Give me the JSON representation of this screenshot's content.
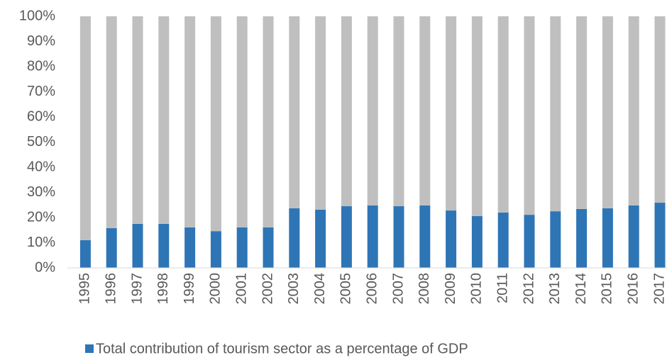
{
  "chart_data": {
    "type": "stacked_bar",
    "categories": [
      "1995",
      "1996",
      "1997",
      "1998",
      "1999",
      "2000",
      "2001",
      "2002",
      "2003",
      "2004",
      "2005",
      "2006",
      "2007",
      "2008",
      "2009",
      "2010",
      "2011",
      "2012",
      "2013",
      "2014",
      "2015",
      "2016",
      "2017"
    ],
    "series": [
      {
        "name": "Total contribution of tourism sector as a percentage of GDP",
        "color": "#2e75b6",
        "values": [
          11.0,
          15.8,
          17.5,
          17.5,
          16.1,
          14.6,
          16.1,
          16.1,
          23.7,
          23.1,
          24.5,
          24.8,
          24.5,
          24.8,
          22.8,
          20.6,
          22.0,
          21.1,
          22.5,
          23.4,
          23.7,
          24.8,
          25.9
        ]
      },
      {
        "color": "#bfbfbf",
        "values": [
          89.0,
          84.2,
          82.5,
          82.5,
          83.9,
          85.4,
          83.9,
          83.9,
          76.3,
          76.9,
          75.5,
          75.2,
          75.5,
          75.2,
          77.2,
          79.4,
          78.0,
          78.9,
          77.5,
          76.6,
          76.3,
          75.2,
          74.1
        ]
      }
    ],
    "ylim": [
      0,
      100
    ],
    "yticks": [
      {
        "value": 0,
        "label": "0%"
      },
      {
        "value": 10,
        "label": "10%"
      },
      {
        "value": 20,
        "label": "20%"
      },
      {
        "value": 30,
        "label": "30%"
      },
      {
        "value": 40,
        "label": "40%"
      },
      {
        "value": 50,
        "label": "50%"
      },
      {
        "value": 60,
        "label": "60%"
      },
      {
        "value": 70,
        "label": "70%"
      },
      {
        "value": 80,
        "label": "80%"
      },
      {
        "value": 90,
        "label": "90%"
      },
      {
        "value": 100,
        "label": "100%"
      }
    ],
    "grid": false,
    "legend": "bottom"
  }
}
